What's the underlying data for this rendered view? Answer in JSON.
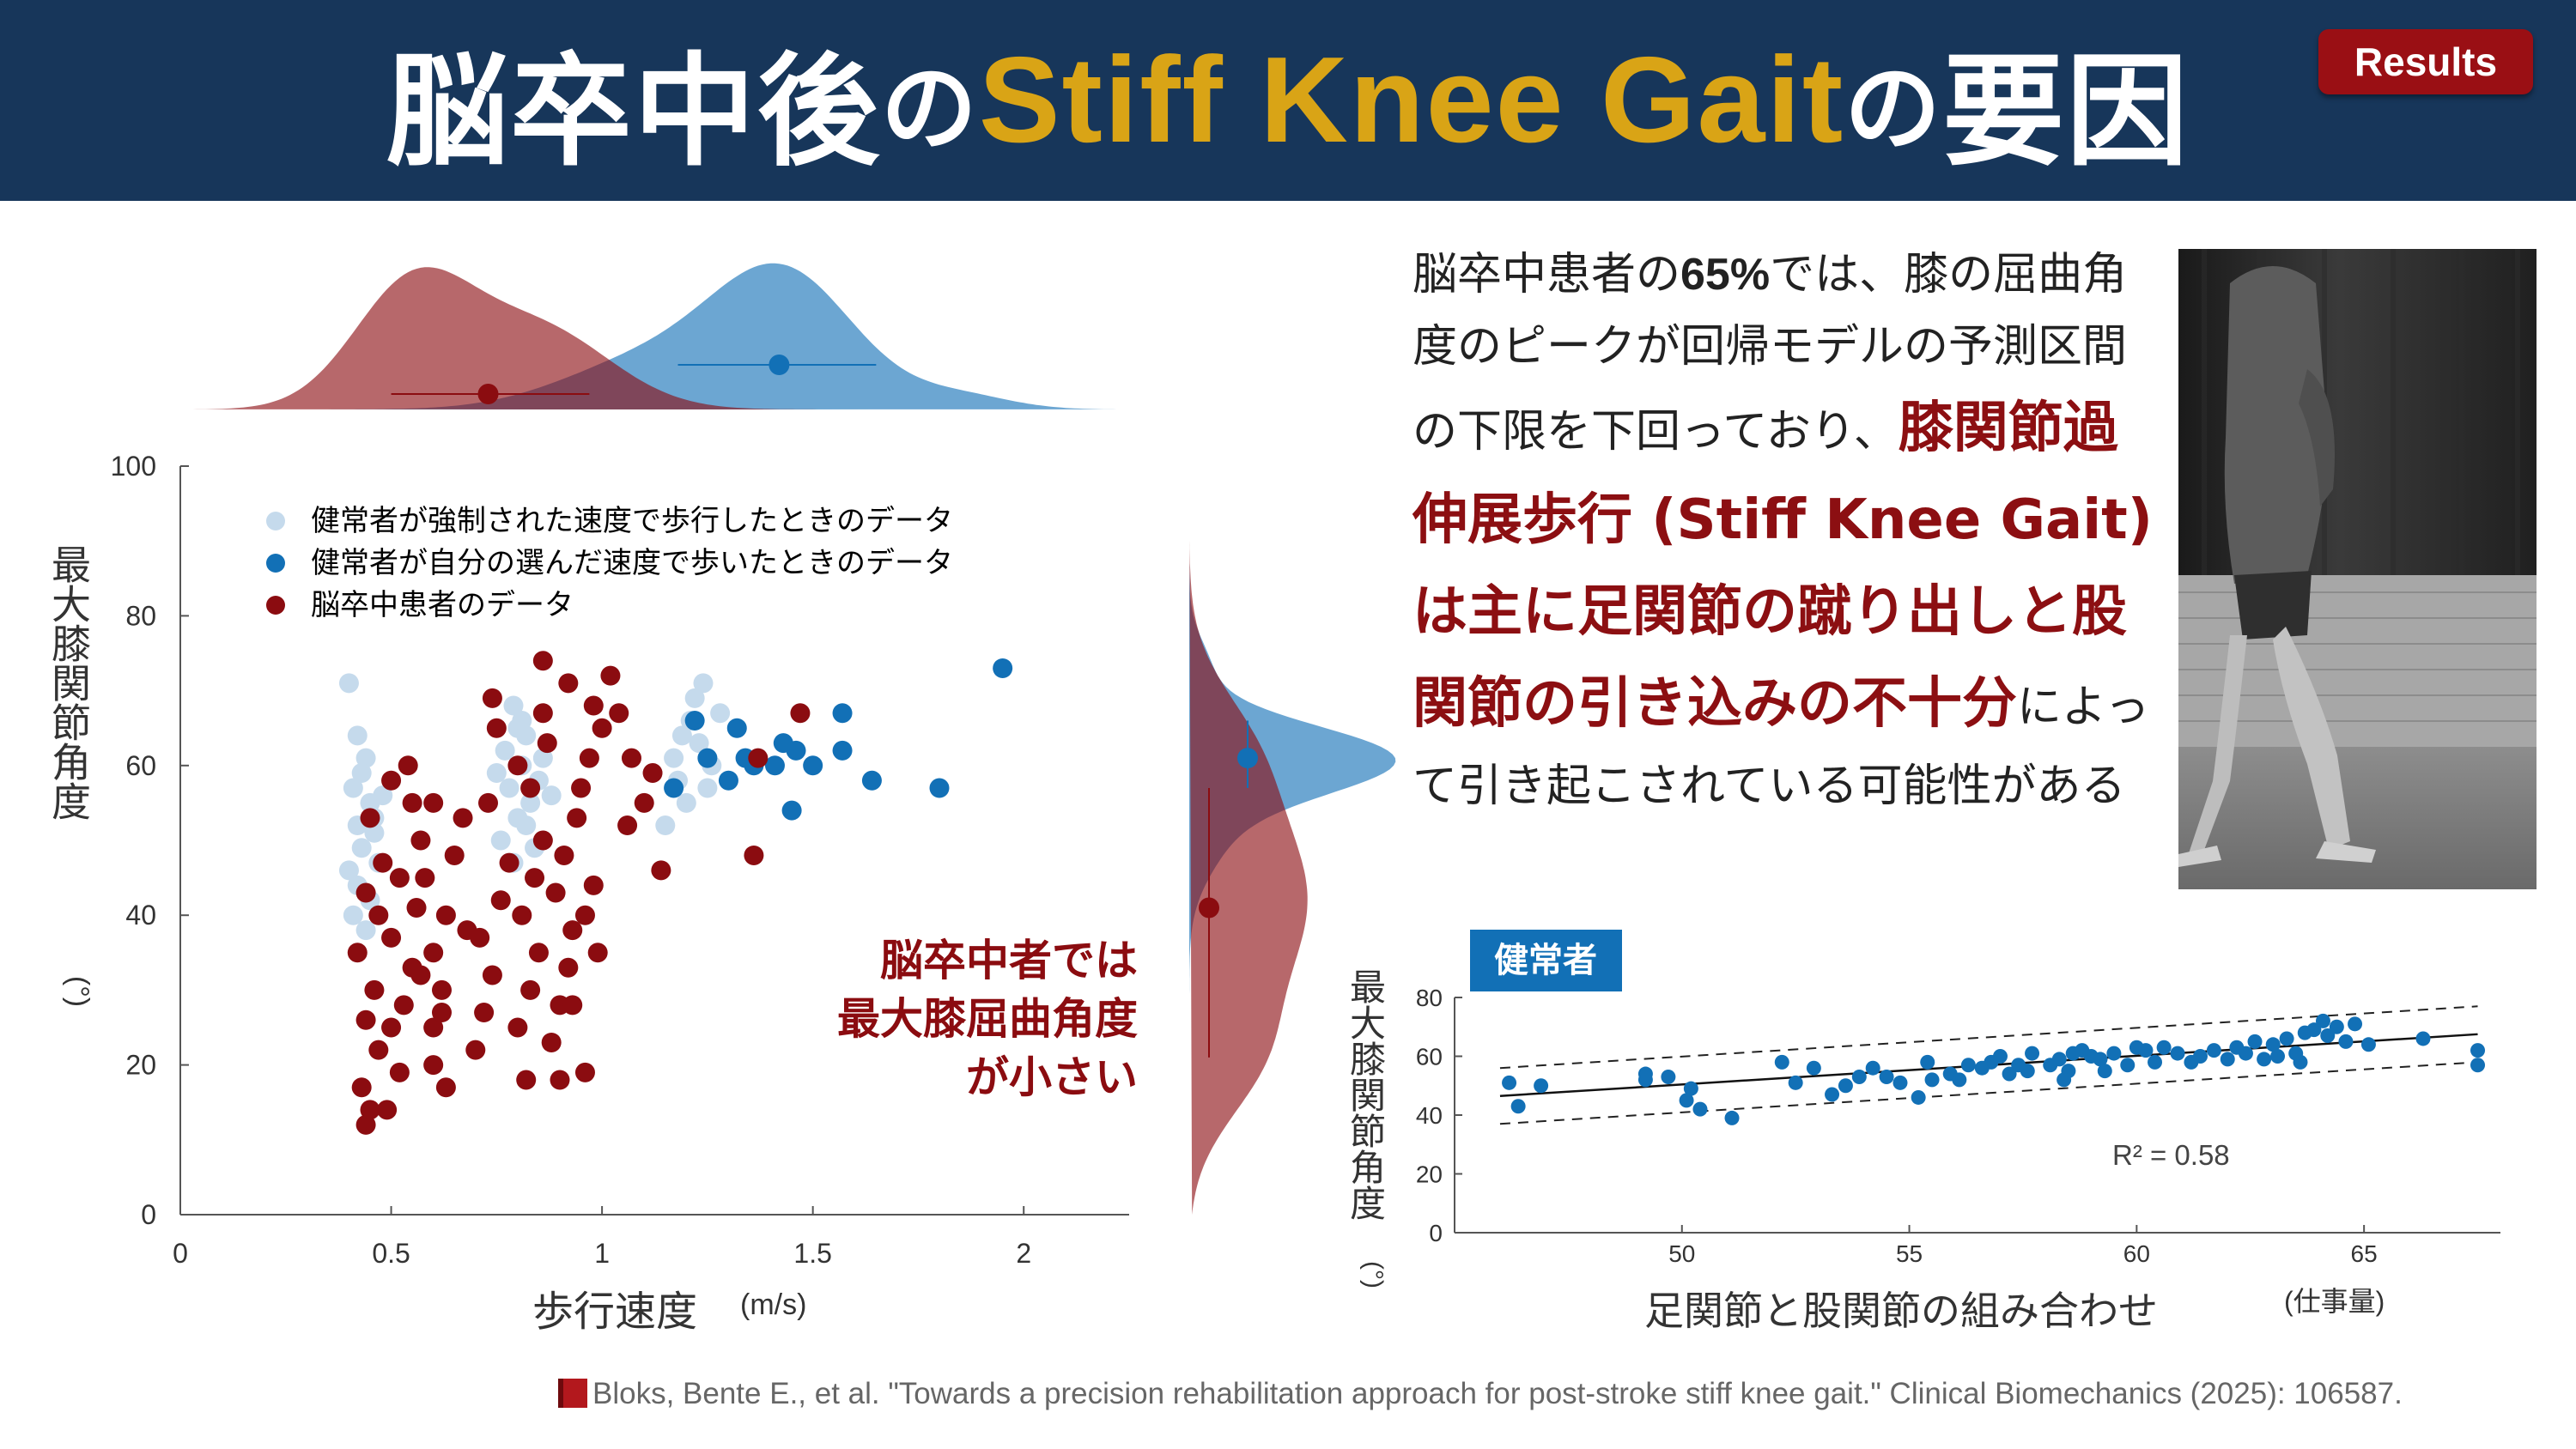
{
  "header": {
    "title_jp1": "脳卒中後",
    "title_no1": "の",
    "title_en": "Stiff Knee Gait",
    "title_no2": "の",
    "title_jp2": "要因",
    "badge": "Results"
  },
  "description": {
    "p1a": "脳卒中患者の",
    "p1num": "65%",
    "p1b": "では、膝の屈曲角度のピークが回帰モデルの予測区間の下限を下回っており、",
    "highlight": "膝関節過伸展歩行 (Stiff Knee Gait)は主に足関節の蹴り出しと股関節の引き込みの不十分",
    "p2": "によって引き起こされている可能性がある"
  },
  "citation": "Bloks, Bente E., et al. \"Towards a precision rehabilitation approach for post-stroke stiff knee gait.\" Clinical Biomechanics (2025): 106587.",
  "colors": {
    "stroke": "#8b0c10",
    "forced": "#c5daec",
    "selfsel": "#1270b6",
    "header_bg": "#17365a",
    "accent": "#d9a416"
  },
  "chart_data": [
    {
      "type": "scatter",
      "xlabel": "歩行速度",
      "xunit": "(m/s)",
      "ylabel": "最大膝関節角度",
      "yunit": "(°)",
      "xlim": [
        0,
        2.25
      ],
      "ylim": [
        0,
        100
      ],
      "xticks": [
        0,
        0.5,
        1,
        1.5,
        2
      ],
      "yticks": [
        0,
        20,
        40,
        60,
        80,
        100
      ],
      "xtick_labels": [
        "0",
        "0.5",
        "1",
        "1.5",
        "2"
      ],
      "ytick_labels": [
        "0",
        "20",
        "40",
        "60",
        "80",
        "100"
      ],
      "legend": [
        "健常者が強制された速度で歩行したときのデータ",
        "健常者が自分の選んだ速度で歩いたときのデータ",
        "脳卒中患者のデータ"
      ],
      "legend_position": "top-left",
      "annotation": [
        "脳卒中者では",
        "最大膝屈曲角度",
        "が小さい"
      ],
      "marginals": {
        "x": {
          "stroke_mean": 0.73,
          "stroke_range": [
            0.5,
            0.97
          ],
          "healthy_mean": 1.42,
          "healthy_range": [
            1.18,
            1.65
          ]
        },
        "y": {
          "stroke_mean": 41,
          "stroke_range": [
            21,
            57
          ],
          "healthy_mean": 61,
          "healthy_range": [
            57,
            66
          ]
        }
      },
      "series": [
        {
          "name": "健常者が強制された速度で歩行したときのデータ",
          "points": [
            [
              0.4,
              71
            ],
            [
              0.42,
              64
            ],
            [
              0.44,
              61
            ],
            [
              0.41,
              57
            ],
            [
              0.46,
              53
            ],
            [
              0.42,
              52
            ],
            [
              0.45,
              55
            ],
            [
              0.43,
              49
            ],
            [
              0.47,
              47
            ],
            [
              0.4,
              46
            ],
            [
              0.42,
              44
            ],
            [
              0.45,
              42
            ],
            [
              0.41,
              40
            ],
            [
              0.44,
              38
            ],
            [
              0.46,
              51
            ],
            [
              0.43,
              59
            ],
            [
              0.48,
              56
            ],
            [
              0.79,
              68
            ],
            [
              0.8,
              65
            ],
            [
              0.82,
              64
            ],
            [
              0.77,
              62
            ],
            [
              0.81,
              60
            ],
            [
              0.85,
              58
            ],
            [
              0.78,
              57
            ],
            [
              0.83,
              55
            ],
            [
              0.8,
              53
            ],
            [
              0.76,
              50
            ],
            [
              0.84,
              49
            ],
            [
              0.79,
              47
            ],
            [
              0.82,
              52
            ],
            [
              0.86,
              61
            ],
            [
              0.88,
              56
            ],
            [
              0.75,
              59
            ],
            [
              0.81,
              66
            ],
            [
              1.17,
              61
            ],
            [
              1.21,
              66
            ],
            [
              1.24,
              71
            ],
            [
              1.18,
              58
            ],
            [
              1.23,
              63
            ],
            [
              1.26,
              60
            ],
            [
              1.2,
              55
            ],
            [
              1.15,
              52
            ],
            [
              1.28,
              67
            ],
            [
              1.22,
              69
            ],
            [
              1.19,
              64
            ],
            [
              1.25,
              57
            ]
          ]
        },
        {
          "name": "健常者が自分の選んだ速度で歩いたときのデータ",
          "points": [
            [
              1.95,
              73
            ],
            [
              1.8,
              57
            ],
            [
              1.64,
              58
            ],
            [
              1.57,
              67
            ],
            [
              1.57,
              62
            ],
            [
              1.5,
              60
            ],
            [
              1.46,
              62
            ],
            [
              1.43,
              63
            ],
            [
              1.41,
              60
            ],
            [
              1.45,
              54
            ],
            [
              1.36,
              60
            ],
            [
              1.34,
              61
            ],
            [
              1.3,
              58
            ],
            [
              1.25,
              61
            ],
            [
              1.22,
              66
            ],
            [
              1.17,
              57
            ],
            [
              1.32,
              65
            ]
          ]
        },
        {
          "name": "脳卒中患者のデータ",
          "points": [
            [
              0.44,
              12
            ],
            [
              0.45,
              14
            ],
            [
              0.43,
              17
            ],
            [
              0.49,
              14
            ],
            [
              0.52,
              19
            ],
            [
              0.47,
              22
            ],
            [
              0.5,
              25
            ],
            [
              0.44,
              26
            ],
            [
              0.53,
              28
            ],
            [
              0.46,
              30
            ],
            [
              0.55,
              33
            ],
            [
              0.42,
              35
            ],
            [
              0.5,
              37
            ],
            [
              0.47,
              40
            ],
            [
              0.56,
              41
            ],
            [
              0.44,
              43
            ],
            [
              0.52,
              45
            ],
            [
              0.48,
              47
            ],
            [
              0.57,
              50
            ],
            [
              0.45,
              53
            ],
            [
              0.55,
              55
            ],
            [
              0.5,
              58
            ],
            [
              0.6,
              20
            ],
            [
              0.63,
              17
            ],
            [
              0.6,
              25
            ],
            [
              0.62,
              30
            ],
            [
              0.6,
              35
            ],
            [
              0.63,
              40
            ],
            [
              0.58,
              45
            ],
            [
              0.65,
              48
            ],
            [
              0.6,
              55
            ],
            [
              0.62,
              27
            ],
            [
              0.57,
              32
            ],
            [
              0.68,
              38
            ],
            [
              0.7,
              22
            ],
            [
              0.72,
              27
            ],
            [
              0.74,
              32
            ],
            [
              0.71,
              37
            ],
            [
              0.76,
              42
            ],
            [
              0.78,
              47
            ],
            [
              0.73,
              55
            ],
            [
              0.8,
              60
            ],
            [
              0.75,
              65
            ],
            [
              0.82,
              18
            ],
            [
              0.8,
              25
            ],
            [
              0.83,
              30
            ],
            [
              0.85,
              35
            ],
            [
              0.81,
              40
            ],
            [
              0.84,
              45
            ],
            [
              0.86,
              50
            ],
            [
              0.83,
              57
            ],
            [
              0.87,
              63
            ],
            [
              0.88,
              23
            ],
            [
              0.9,
              28
            ],
            [
              0.92,
              33
            ],
            [
              0.93,
              38
            ],
            [
              0.89,
              43
            ],
            [
              0.91,
              48
            ],
            [
              0.94,
              53
            ],
            [
              0.86,
              67
            ],
            [
              0.92,
              71
            ],
            [
              0.96,
              40
            ],
            [
              0.98,
              44
            ],
            [
              0.95,
              57
            ],
            [
              0.97,
              61
            ],
            [
              1.0,
              65
            ],
            [
              0.98,
              68
            ],
            [
              1.02,
              72
            ],
            [
              1.04,
              67
            ],
            [
              1.07,
              61
            ],
            [
              1.1,
              55
            ],
            [
              1.12,
              59
            ],
            [
              0.96,
              19
            ],
            [
              0.93,
              28
            ],
            [
              0.86,
              74
            ],
            [
              0.74,
              69
            ],
            [
              1.14,
              46
            ],
            [
              1.36,
              48
            ],
            [
              1.37,
              61
            ],
            [
              1.47,
              67
            ],
            [
              1.06,
              52
            ],
            [
              0.99,
              35
            ],
            [
              0.9,
              18
            ],
            [
              0.67,
              53
            ],
            [
              0.54,
              60
            ]
          ]
        }
      ]
    },
    {
      "type": "scatter",
      "label": "健常者",
      "xlabel": "足関節と股関節の組み合わせ",
      "xunit": "(仕事量)",
      "ylabel": "最大膝関節角度",
      "yunit": "(°)",
      "xlim": [
        45,
        68
      ],
      "ylim": [
        0,
        80
      ],
      "xticks": [
        50,
        55,
        60,
        65
      ],
      "yticks": [
        0,
        20,
        40,
        60,
        80
      ],
      "xtick_labels": [
        "50",
        "55",
        "60",
        "65"
      ],
      "ytick_labels": [
        "0",
        "20",
        "40",
        "60",
        "80"
      ],
      "r2_label": "R² = 0.58",
      "fit": {
        "x": [
          46,
          67.5
        ],
        "y": [
          46.5,
          67.5
        ]
      },
      "pred_upper": {
        "x": [
          46,
          67.5
        ],
        "y": [
          56,
          77
        ]
      },
      "pred_lower": {
        "x": [
          46,
          67.5
        ],
        "y": [
          37,
          58
        ]
      },
      "series": [
        {
          "name": "",
          "points": [
            [
              46.2,
              51
            ],
            [
              46.4,
              43
            ],
            [
              46.9,
              50
            ],
            [
              49.2,
              52
            ],
            [
              49.2,
              54
            ],
            [
              49.7,
              53
            ],
            [
              50.1,
              45
            ],
            [
              50.2,
              49
            ],
            [
              50.4,
              42
            ],
            [
              51.1,
              39
            ],
            [
              52.2,
              58
            ],
            [
              52.5,
              51
            ],
            [
              52.9,
              56
            ],
            [
              53.3,
              47
            ],
            [
              53.6,
              50
            ],
            [
              53.9,
              53
            ],
            [
              54.2,
              56
            ],
            [
              54.5,
              53
            ],
            [
              54.8,
              51
            ],
            [
              55.2,
              46
            ],
            [
              55.5,
              52
            ],
            [
              55.4,
              58
            ],
            [
              55.9,
              54
            ],
            [
              56.3,
              57
            ],
            [
              56.6,
              56
            ],
            [
              56.8,
              58
            ],
            [
              57.0,
              60
            ],
            [
              57.2,
              54
            ],
            [
              57.4,
              57
            ],
            [
              57.6,
              55
            ],
            [
              57.7,
              61
            ],
            [
              58.1,
              57
            ],
            [
              58.3,
              59
            ],
            [
              58.5,
              55
            ],
            [
              58.6,
              61
            ],
            [
              58.8,
              62
            ],
            [
              59.0,
              60
            ],
            [
              59.2,
              59
            ],
            [
              59.5,
              61
            ],
            [
              59.3,
              55
            ],
            [
              59.8,
              57
            ],
            [
              60.0,
              63
            ],
            [
              60.2,
              62
            ],
            [
              60.4,
              58
            ],
            [
              60.6,
              63
            ],
            [
              60.9,
              61
            ],
            [
              61.2,
              58
            ],
            [
              61.4,
              60
            ],
            [
              61.7,
              62
            ],
            [
              62.0,
              59
            ],
            [
              62.2,
              63
            ],
            [
              62.4,
              61
            ],
            [
              62.6,
              65
            ],
            [
              62.8,
              59
            ],
            [
              63.0,
              64
            ],
            [
              63.1,
              60
            ],
            [
              63.3,
              66
            ],
            [
              63.5,
              61
            ],
            [
              63.7,
              68
            ],
            [
              63.9,
              69
            ],
            [
              64.1,
              72
            ],
            [
              64.2,
              67
            ],
            [
              64.4,
              70
            ],
            [
              64.6,
              65
            ],
            [
              64.8,
              71
            ],
            [
              65.1,
              64
            ],
            [
              66.3,
              66
            ],
            [
              67.5,
              57
            ],
            [
              67.5,
              62
            ],
            [
              58.4,
              52
            ],
            [
              56.1,
              52
            ],
            [
              63.6,
              58
            ]
          ]
        }
      ]
    }
  ]
}
